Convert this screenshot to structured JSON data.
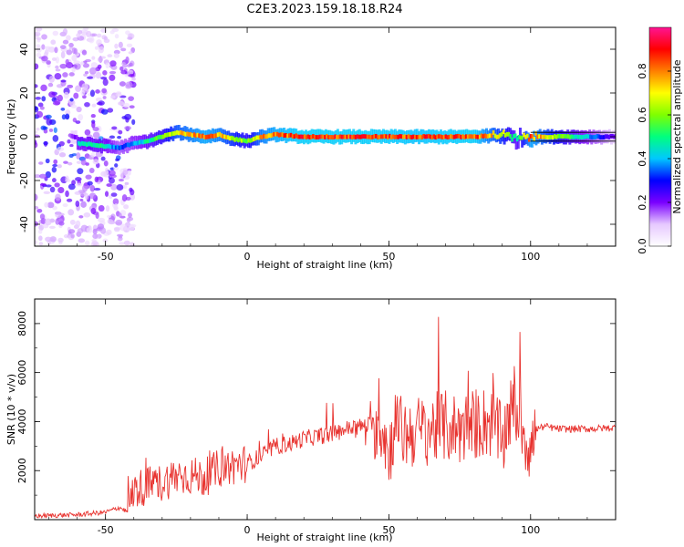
{
  "figure_title": "C2E3.2023.159.18.18.R24",
  "chart_data": [
    {
      "type": "heatmap",
      "xlabel": "Height of straight line (km)",
      "ylabel": "Frequency (Hz)",
      "xlim": [
        -75,
        130
      ],
      "ylim": [
        -50,
        50
      ],
      "xticks": [
        -50,
        0,
        50,
        100
      ],
      "yticks": [
        -40,
        -20,
        0,
        20,
        40
      ],
      "colorbar": {
        "label": "Normalized spectral amplitude",
        "range": [
          0.0,
          1.0
        ],
        "ticks": [
          0.0,
          0.2,
          0.4,
          0.6,
          0.8
        ],
        "colors": [
          "#ffffff",
          "#e6c8ff",
          "#7a00ff",
          "#0000ff",
          "#00c8ff",
          "#00ff7f",
          "#7fff00",
          "#ffff00",
          "#ff7f00",
          "#ff0000",
          "#ff1493"
        ]
      },
      "ridge": {
        "x": [
          -60,
          -52,
          -45,
          -40,
          -35,
          -30,
          -25,
          -20,
          -15,
          -10,
          -5,
          0,
          5,
          10,
          20,
          40,
          60,
          80,
          90,
          95,
          100,
          130
        ],
        "frequency": [
          -3,
          -4,
          -5,
          -3,
          -2,
          0,
          2,
          1,
          0,
          1,
          -1,
          -2,
          0,
          1,
          0,
          0,
          0,
          0,
          1,
          -1,
          0,
          0
        ],
        "amplitude": [
          0.45,
          0.5,
          0.35,
          0.4,
          0.5,
          0.6,
          0.75,
          0.8,
          0.85,
          0.8,
          0.7,
          0.6,
          0.8,
          0.85,
          0.9,
          0.9,
          0.88,
          0.9,
          0.7,
          0.5,
          0.85,
          0.2
        ]
      },
      "horizontal_lines_hz": [
        -2,
        2
      ]
    },
    {
      "type": "line",
      "xlabel": "Height of straight line (km)",
      "ylabel": "SNR (10 * v/v)",
      "xlim": [
        -75,
        130
      ],
      "ylim": [
        0,
        9000
      ],
      "xticks": [
        -50,
        0,
        50,
        100
      ],
      "yticks": [
        2000,
        4000,
        6000,
        8000
      ],
      "series": [
        {
          "color": "#e8332f",
          "x": [
            -75,
            -60,
            -50,
            -45,
            -42,
            -40,
            -35,
            -30,
            -25,
            -20,
            -15,
            -10,
            -5,
            0,
            5,
            10,
            15,
            20,
            25,
            30,
            35,
            40,
            45,
            48,
            50,
            52,
            55,
            60,
            65,
            70,
            75,
            80,
            85,
            88,
            90,
            92,
            95,
            98,
            100,
            102,
            105,
            110,
            120,
            130
          ],
          "y": [
            150,
            200,
            300,
            500,
            300,
            1200,
            1400,
            1500,
            1800,
            1800,
            1700,
            2100,
            2200,
            2300,
            2600,
            3000,
            3100,
            3300,
            3400,
            3500,
            3700,
            3800,
            3900,
            3800,
            2500,
            4000,
            3500,
            3600,
            3700,
            3800,
            3700,
            3900,
            4000,
            3800,
            3000,
            4200,
            4500,
            3500,
            2800,
            3700,
            3800,
            3700,
            3700,
            3750
          ]
        }
      ]
    }
  ]
}
